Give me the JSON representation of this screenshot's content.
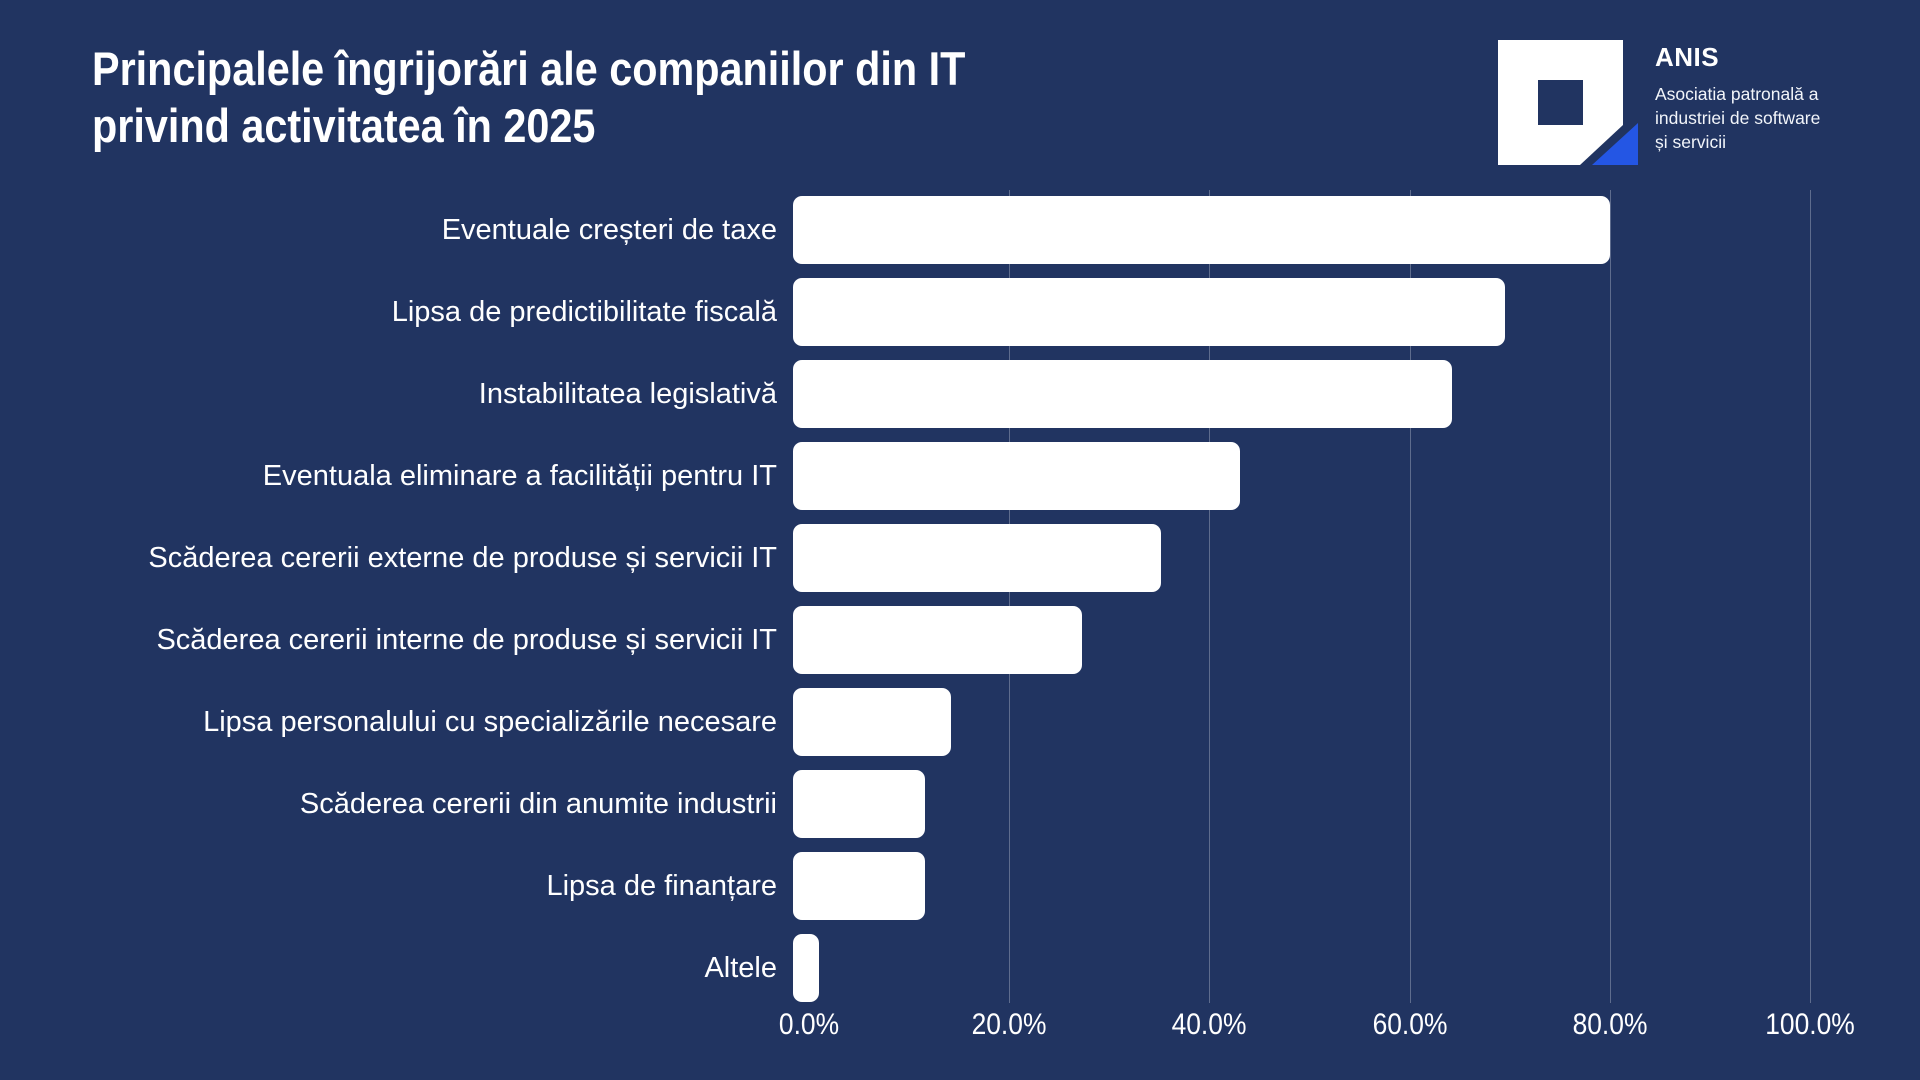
{
  "title": {
    "lines": [
      "Principalele îngrijorări ale companiilor din IT",
      "privind activitatea în 2025"
    ]
  },
  "logo": {
    "name": "ANIS",
    "tagline_lines": [
      "Asociatia patronală a",
      "industriei de software",
      "și servicii"
    ]
  },
  "colors": {
    "background": "#213461",
    "bar": "#ffffff",
    "logo_accent": "#2456e4",
    "gridline": "rgba(255,255,255,0.28)"
  },
  "chart_data": {
    "type": "bar",
    "orientation": "horizontal",
    "title": "Principalele îngrijorări ale companiilor din IT privind activitatea în 2025",
    "categories": [
      "Eventuale creșteri de taxe",
      "Lipsa de predictibilitate fiscală",
      "Instabilitatea legislativă",
      "Eventuala eliminare a facilității pentru IT",
      "Scăderea cererii externe de produse și servicii IT",
      "Scăderea cererii interne de produse și servicii IT",
      "Lipsa personalului cu specializările necesare",
      "Scăderea cererii din anumite industrii",
      "Lipsa de finanțare",
      "Altele"
    ],
    "values": [
      81.6,
      71.1,
      65.8,
      44.7,
      36.8,
      28.9,
      15.8,
      13.2,
      13.2,
      2.6
    ],
    "unit": "%",
    "xlabel": "",
    "ylabel": "",
    "xlim": [
      0,
      100
    ],
    "x_tick_labels": [
      "0.0%",
      "20.0%",
      "40.0%",
      "60.0%",
      "80.0%",
      "100.0%"
    ],
    "grid": "vertical",
    "legend": "none",
    "bar_color": "#ffffff",
    "background_color": "#213461"
  }
}
